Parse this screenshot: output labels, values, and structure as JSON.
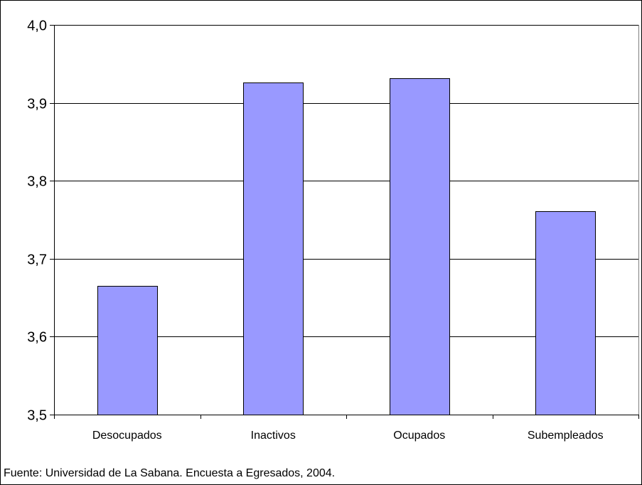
{
  "chart_data": {
    "type": "bar",
    "categories": [
      "Desocupados",
      "Inactivos",
      "Ocupados",
      "Subempleados"
    ],
    "values": [
      3.665,
      3.926,
      3.932,
      3.761
    ],
    "ylim": [
      3.5,
      4.0
    ],
    "yticks": [
      "3,5",
      "3,6",
      "3,7",
      "3,8",
      "3,9",
      "4,0"
    ],
    "ytick_values": [
      3.5,
      3.6,
      3.7,
      3.8,
      3.9,
      4.0
    ],
    "grid": true,
    "colors": {
      "bar": "#9999ff",
      "bar_stroke": "#000000",
      "grid": "#000000"
    },
    "source": "Fuente: Universidad de La Sabana. Encuesta a Egresados, 2004."
  }
}
